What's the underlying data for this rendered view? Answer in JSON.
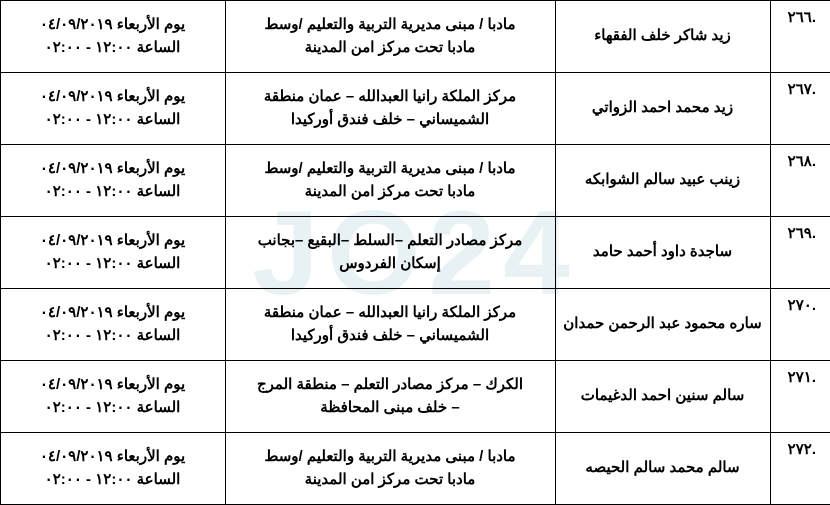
{
  "watermark": "JO24",
  "rows": [
    {
      "num": ".٢٦٦",
      "name": "زيد شاكر خلف الفقهاء",
      "location_l1": "مادبا / مبنى مديرية التربية والتعليم /وسط",
      "location_l2": "مادبا تحت مركز امن المدينة",
      "date": "يوم الأربعاء ٠٤/٠٩/٢٠١٩",
      "time": "الساعة ١٢:٠٠ - ٠٢:٠٠"
    },
    {
      "num": ".٢٦٧",
      "name": "زيد محمد احمد الزواتي",
      "location_l1": "مركز الملكة رانيا العبدالله – عمان منطقة",
      "location_l2": "الشميساني – خلف فندق أوركيدا",
      "date": "يوم الأربعاء ٠٤/٠٩/٢٠١٩",
      "time": "الساعة ١٢:٠٠ - ٠٢:٠٠"
    },
    {
      "num": ".٢٦٨",
      "name": "زينب عبيد سالم الشوابكه",
      "location_l1": "مادبا / مبنى مديرية التربية والتعليم /وسط",
      "location_l2": "مادبا تحت مركز امن المدينة",
      "date": "يوم الأربعاء ٠٤/٠٩/٢٠١٩",
      "time": "الساعة ١٢:٠٠ - ٠٢:٠٠"
    },
    {
      "num": ".٢٦٩",
      "name": "ساجدة داود أحمد حامد",
      "location_l1": "مركز مصادر التعلم –السلط –البقيع –بجانب",
      "location_l2": "إسكان الفردوس",
      "date": "يوم الأربعاء ٠٤/٠٩/٢٠١٩",
      "time": "الساعة ١٢:٠٠ - ٠٢:٠٠"
    },
    {
      "num": ".٢٧٠",
      "name": "ساره محمود عبد الرحمن حمدان",
      "location_l1": "مركز الملكة رانيا العبدالله – عمان منطقة",
      "location_l2": "الشميساني – خلف فندق أوركيدا",
      "date": "يوم الأربعاء ٠٤/٠٩/٢٠١٩",
      "time": "الساعة ١٢:٠٠ - ٠٢:٠٠"
    },
    {
      "num": ".٢٧١",
      "name": "سالم سنين احمد الدغيمات",
      "location_l1": "الكرك – مركز مصادر التعلم – منطقة المرج",
      "location_l2": "– خلف مبنى المحافظة",
      "date": "يوم الأربعاء ٠٤/٠٩/٢٠١٩",
      "time": "الساعة ١٢:٠٠ - ٠٢:٠٠"
    },
    {
      "num": ".٢٧٢",
      "name": "سالم محمد سالم الحيصه",
      "location_l1": "مادبا / مبنى مديرية التربية والتعليم /وسط",
      "location_l2": "مادبا تحت مركز امن المدينة",
      "date": "يوم الأربعاء ٠٤/٠٩/٢٠١٩",
      "time": "الساعة ١٢:٠٠ - ٠٢:٠٠"
    }
  ]
}
